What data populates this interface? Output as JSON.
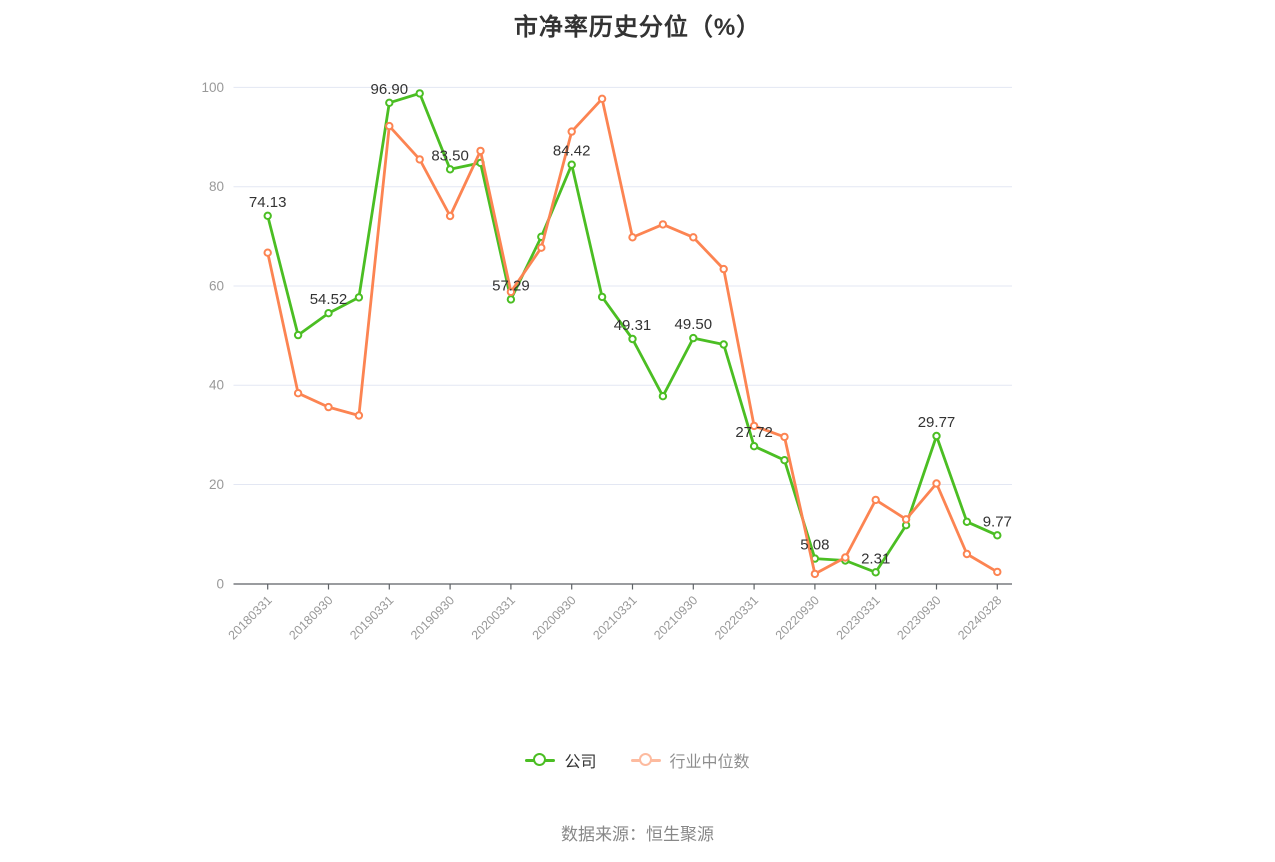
{
  "page": {
    "source": "数据来源：恒生聚源"
  },
  "chart_data": {
    "type": "line",
    "title": "市净率历史分位（%）",
    "ylim": [
      0,
      100
    ],
    "y_ticks": [
      0,
      20,
      40,
      60,
      80,
      100
    ],
    "grid": true,
    "legend_position": "bottom",
    "x_label_rotate": 45,
    "x_label_every": 2,
    "categories": [
      "20180331",
      "20180930",
      "20190331",
      "20190930",
      "20200331",
      "20200930",
      "20210331",
      "20210930",
      "20220331",
      "20220930",
      "20230331",
      "20230930",
      "20240328"
    ],
    "series": [
      {
        "id": "company",
        "name": "公司",
        "color": "#4BBE23",
        "legend_opacity": 1,
        "values": [
          74.13,
          50.1,
          54.52,
          57.7,
          96.9,
          98.8,
          83.5,
          84.8,
          57.29,
          69.9,
          84.42,
          57.8,
          49.31,
          37.8,
          49.5,
          48.2,
          27.72,
          24.9,
          5.08,
          4.7,
          2.31,
          11.8,
          29.77,
          12.5,
          9.77
        ]
      },
      {
        "id": "industry",
        "name": "行业中位数",
        "color": "#FC8452",
        "legend_opacity": 0.55,
        "values": [
          66.7,
          38.4,
          35.6,
          33.9,
          92.2,
          85.5,
          74.1,
          87.2,
          58.8,
          67.7,
          91.1,
          97.7,
          69.8,
          72.4,
          69.8,
          63.4,
          31.8,
          29.6,
          2.0,
          5.3,
          16.9,
          13.0,
          20.2,
          6.0,
          2.4
        ]
      }
    ],
    "point_labels": {
      "0": "74.13",
      "2": "54.52",
      "4": "96.90",
      "6": "83.50",
      "8": "57.29",
      "10": "84.42",
      "12": "49.31",
      "14": "49.50",
      "16": "27.72",
      "18": "5.08",
      "20": "2.31",
      "22": "29.77",
      "24": "9.77"
    },
    "colors": {
      "grid": "#E3E7F3",
      "axis": "#5E6266",
      "axis_label": "#999999",
      "point_label": "#333333"
    }
  }
}
